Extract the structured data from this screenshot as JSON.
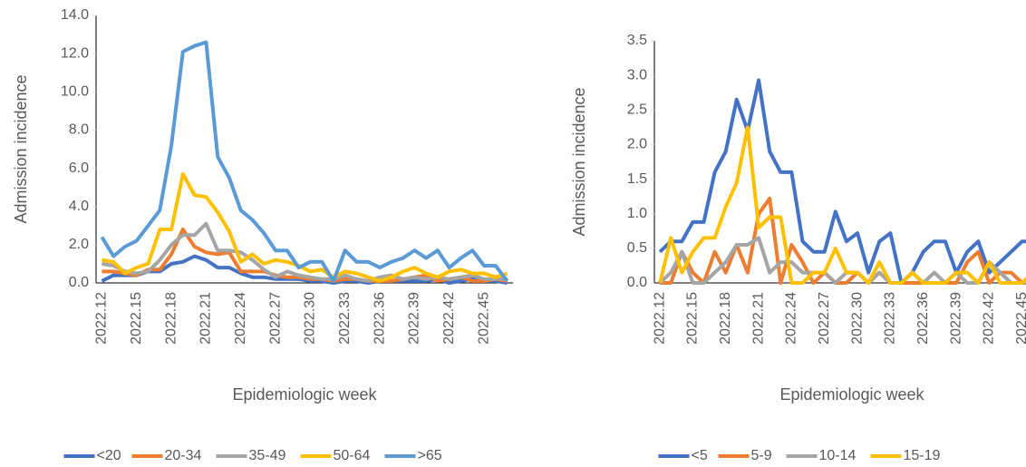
{
  "chart_data": [
    {
      "type": "line",
      "y_label": "Admission incidence",
      "x_label": "Epidemiologic week",
      "categories": [
        "2022.12",
        null,
        null,
        "2022.15",
        null,
        null,
        "2022.18",
        null,
        null,
        "2022.21",
        null,
        null,
        "2022.24",
        null,
        null,
        "2022.27",
        null,
        null,
        "2022.30",
        null,
        null,
        "2022.33",
        null,
        null,
        "2022.36",
        null,
        null,
        "2022.39",
        null,
        null,
        "2022.42",
        null,
        null,
        "2022.45",
        null,
        null
      ],
      "ylim": [
        0,
        14
      ],
      "yticks": [
        {
          "value": 0,
          "label": "0.0"
        },
        {
          "value": 2,
          "label": "2.0"
        },
        {
          "value": 4,
          "label": "4.0"
        },
        {
          "value": 6,
          "label": "6.0"
        },
        {
          "value": 8,
          "label": "8.0"
        },
        {
          "value": 10,
          "label": "10.0"
        },
        {
          "value": 12,
          "label": "12.0"
        },
        {
          "value": 14,
          "label": "14.0"
        }
      ],
      "grid": false,
      "legend": "bottom",
      "series": [
        {
          "name": "<20",
          "color": "#4472c4",
          "values": [
            0.1,
            0.4,
            0.4,
            0.4,
            0.6,
            0.6,
            1.0,
            1.1,
            1.4,
            1.2,
            0.8,
            0.8,
            0.5,
            0.3,
            0.3,
            0.2,
            0.2,
            0.2,
            0.1,
            0.1,
            0.0,
            0.1,
            0.1,
            0.0,
            0.1,
            0.1,
            0.1,
            0.1,
            0.1,
            0.2,
            0.0,
            0.1,
            0.2,
            0.1,
            0.1,
            0.0
          ]
        },
        {
          "name": "20-34",
          "color": "#ed7d31",
          "values": [
            0.6,
            0.6,
            0.5,
            0.4,
            0.7,
            0.7,
            1.5,
            2.8,
            1.9,
            1.6,
            1.5,
            1.6,
            0.6,
            0.6,
            0.6,
            0.4,
            0.3,
            0.3,
            0.2,
            0.2,
            0.1,
            0.2,
            0.2,
            0.1,
            0.1,
            0.1,
            0.2,
            0.3,
            0.4,
            0.1,
            0.2,
            0.3,
            0.1,
            0.1,
            0.2,
            0.1
          ]
        },
        {
          "name": "35-49",
          "color": "#a5a5a5",
          "values": [
            1.0,
            0.9,
            0.6,
            0.5,
            0.6,
            1.2,
            2.0,
            2.5,
            2.5,
            3.1,
            1.7,
            1.7,
            1.6,
            1.2,
            0.7,
            0.3,
            0.6,
            0.4,
            0.3,
            0.2,
            0.2,
            0.4,
            0.2,
            0.1,
            0.3,
            0.4,
            0.2,
            0.3,
            0.2,
            0.3,
            0.2,
            0.3,
            0.4,
            0.2,
            0.2,
            0.2
          ]
        },
        {
          "name": "50-64",
          "color": "#ffc000",
          "values": [
            1.2,
            1.1,
            0.5,
            0.8,
            1.0,
            2.8,
            2.8,
            5.7,
            4.6,
            4.5,
            3.7,
            2.7,
            1.1,
            1.5,
            1.0,
            1.2,
            1.1,
            0.9,
            0.6,
            0.7,
            0.3,
            0.6,
            0.5,
            0.3,
            0.1,
            0.3,
            0.6,
            0.8,
            0.5,
            0.3,
            0.6,
            0.7,
            0.5,
            0.5,
            0.3,
            0.5
          ]
        },
        {
          "name": ">65",
          "color": "#5b9bd5",
          "values": [
            2.4,
            1.4,
            1.9,
            2.2,
            3.0,
            3.8,
            7.2,
            12.1,
            12.4,
            12.6,
            6.6,
            5.5,
            3.8,
            3.3,
            2.6,
            1.7,
            1.7,
            0.8,
            1.1,
            1.1,
            0.1,
            1.7,
            1.1,
            1.1,
            0.8,
            1.1,
            1.3,
            1.7,
            1.3,
            1.7,
            0.8,
            1.3,
            1.7,
            0.9,
            0.9,
            0.1
          ]
        }
      ]
    },
    {
      "type": "line",
      "y_label": "Admission incidence",
      "x_label": "Epidemiologic week",
      "categories": [
        "2022.12",
        null,
        null,
        "2022.15",
        null,
        null,
        "2022.18",
        null,
        null,
        "2022.21",
        null,
        null,
        "2022.24",
        null,
        null,
        "2022.27",
        null,
        null,
        "2022.30",
        null,
        null,
        "2022.33",
        null,
        null,
        "2022.36",
        null,
        null,
        "2022.39",
        null,
        null,
        "2022.42",
        null,
        null,
        "2022.45",
        null,
        null
      ],
      "ylim": [
        0,
        3.5
      ],
      "yticks": [
        {
          "value": 0,
          "label": "0.0"
        },
        0.5,
        {
          "value": 1,
          "label": "1.0"
        },
        1.5,
        {
          "value": 2,
          "label": "2.0"
        },
        2.5,
        {
          "value": 3,
          "label": "3.0"
        },
        3.5
      ],
      "grid": false,
      "legend": "bottom",
      "series": [
        {
          "name": "<5",
          "color": "#4472c4",
          "values": [
            0.45,
            0.6,
            0.6,
            0.88,
            0.88,
            1.6,
            1.9,
            2.65,
            2.2,
            2.93,
            1.9,
            1.6,
            1.6,
            0.6,
            0.45,
            0.45,
            1.03,
            0.6,
            0.72,
            0.15,
            0.6,
            0.72,
            0.0,
            0.15,
            0.45,
            0.6,
            0.6,
            0.15,
            0.45,
            0.6,
            0.15,
            0.3,
            0.45,
            0.6,
            0.6,
            0.15
          ]
        },
        {
          "name": "5-9",
          "color": "#ed7d31",
          "values": [
            0,
            0,
            0.45,
            0.15,
            0,
            0.45,
            0.15,
            0.55,
            0.15,
            1.0,
            1.22,
            0.0,
            0.55,
            0.3,
            0.0,
            0.15,
            0.0,
            0.0,
            0.15,
            0.0,
            0.15,
            0.0,
            0.0,
            0.0,
            0.0,
            0.0,
            0.0,
            0.0,
            0.3,
            0.45,
            0.0,
            0.15,
            0.15,
            0.0,
            0.0,
            0.15
          ]
        },
        {
          "name": "10-14",
          "color": "#a5a5a5",
          "values": [
            0,
            0.15,
            0.45,
            0,
            0,
            0.15,
            0.3,
            0.55,
            0.55,
            0.65,
            0.15,
            0.3,
            0.3,
            0.15,
            0.15,
            0.15,
            0.0,
            0.15,
            0.15,
            0.0,
            0.15,
            0.0,
            0.0,
            0.15,
            0.0,
            0.15,
            0.0,
            0.15,
            0.0,
            0.0,
            0.3,
            0.15,
            0.0,
            0.0,
            0.0,
            0.15
          ]
        },
        {
          "name": "15-19",
          "color": "#ffc000",
          "values": [
            0,
            0.65,
            0.15,
            0.45,
            0.65,
            0.65,
            1.1,
            1.45,
            2.25,
            0.8,
            0.95,
            0.95,
            0.0,
            0.0,
            0.15,
            0.15,
            0.5,
            0.15,
            0.15,
            0.0,
            0.3,
            0.0,
            0.0,
            0.15,
            0.0,
            0.0,
            0.0,
            0.15,
            0.15,
            0.0,
            0.3,
            0.0,
            0.0,
            0.0,
            0.15,
            0.15
          ]
        }
      ]
    }
  ]
}
